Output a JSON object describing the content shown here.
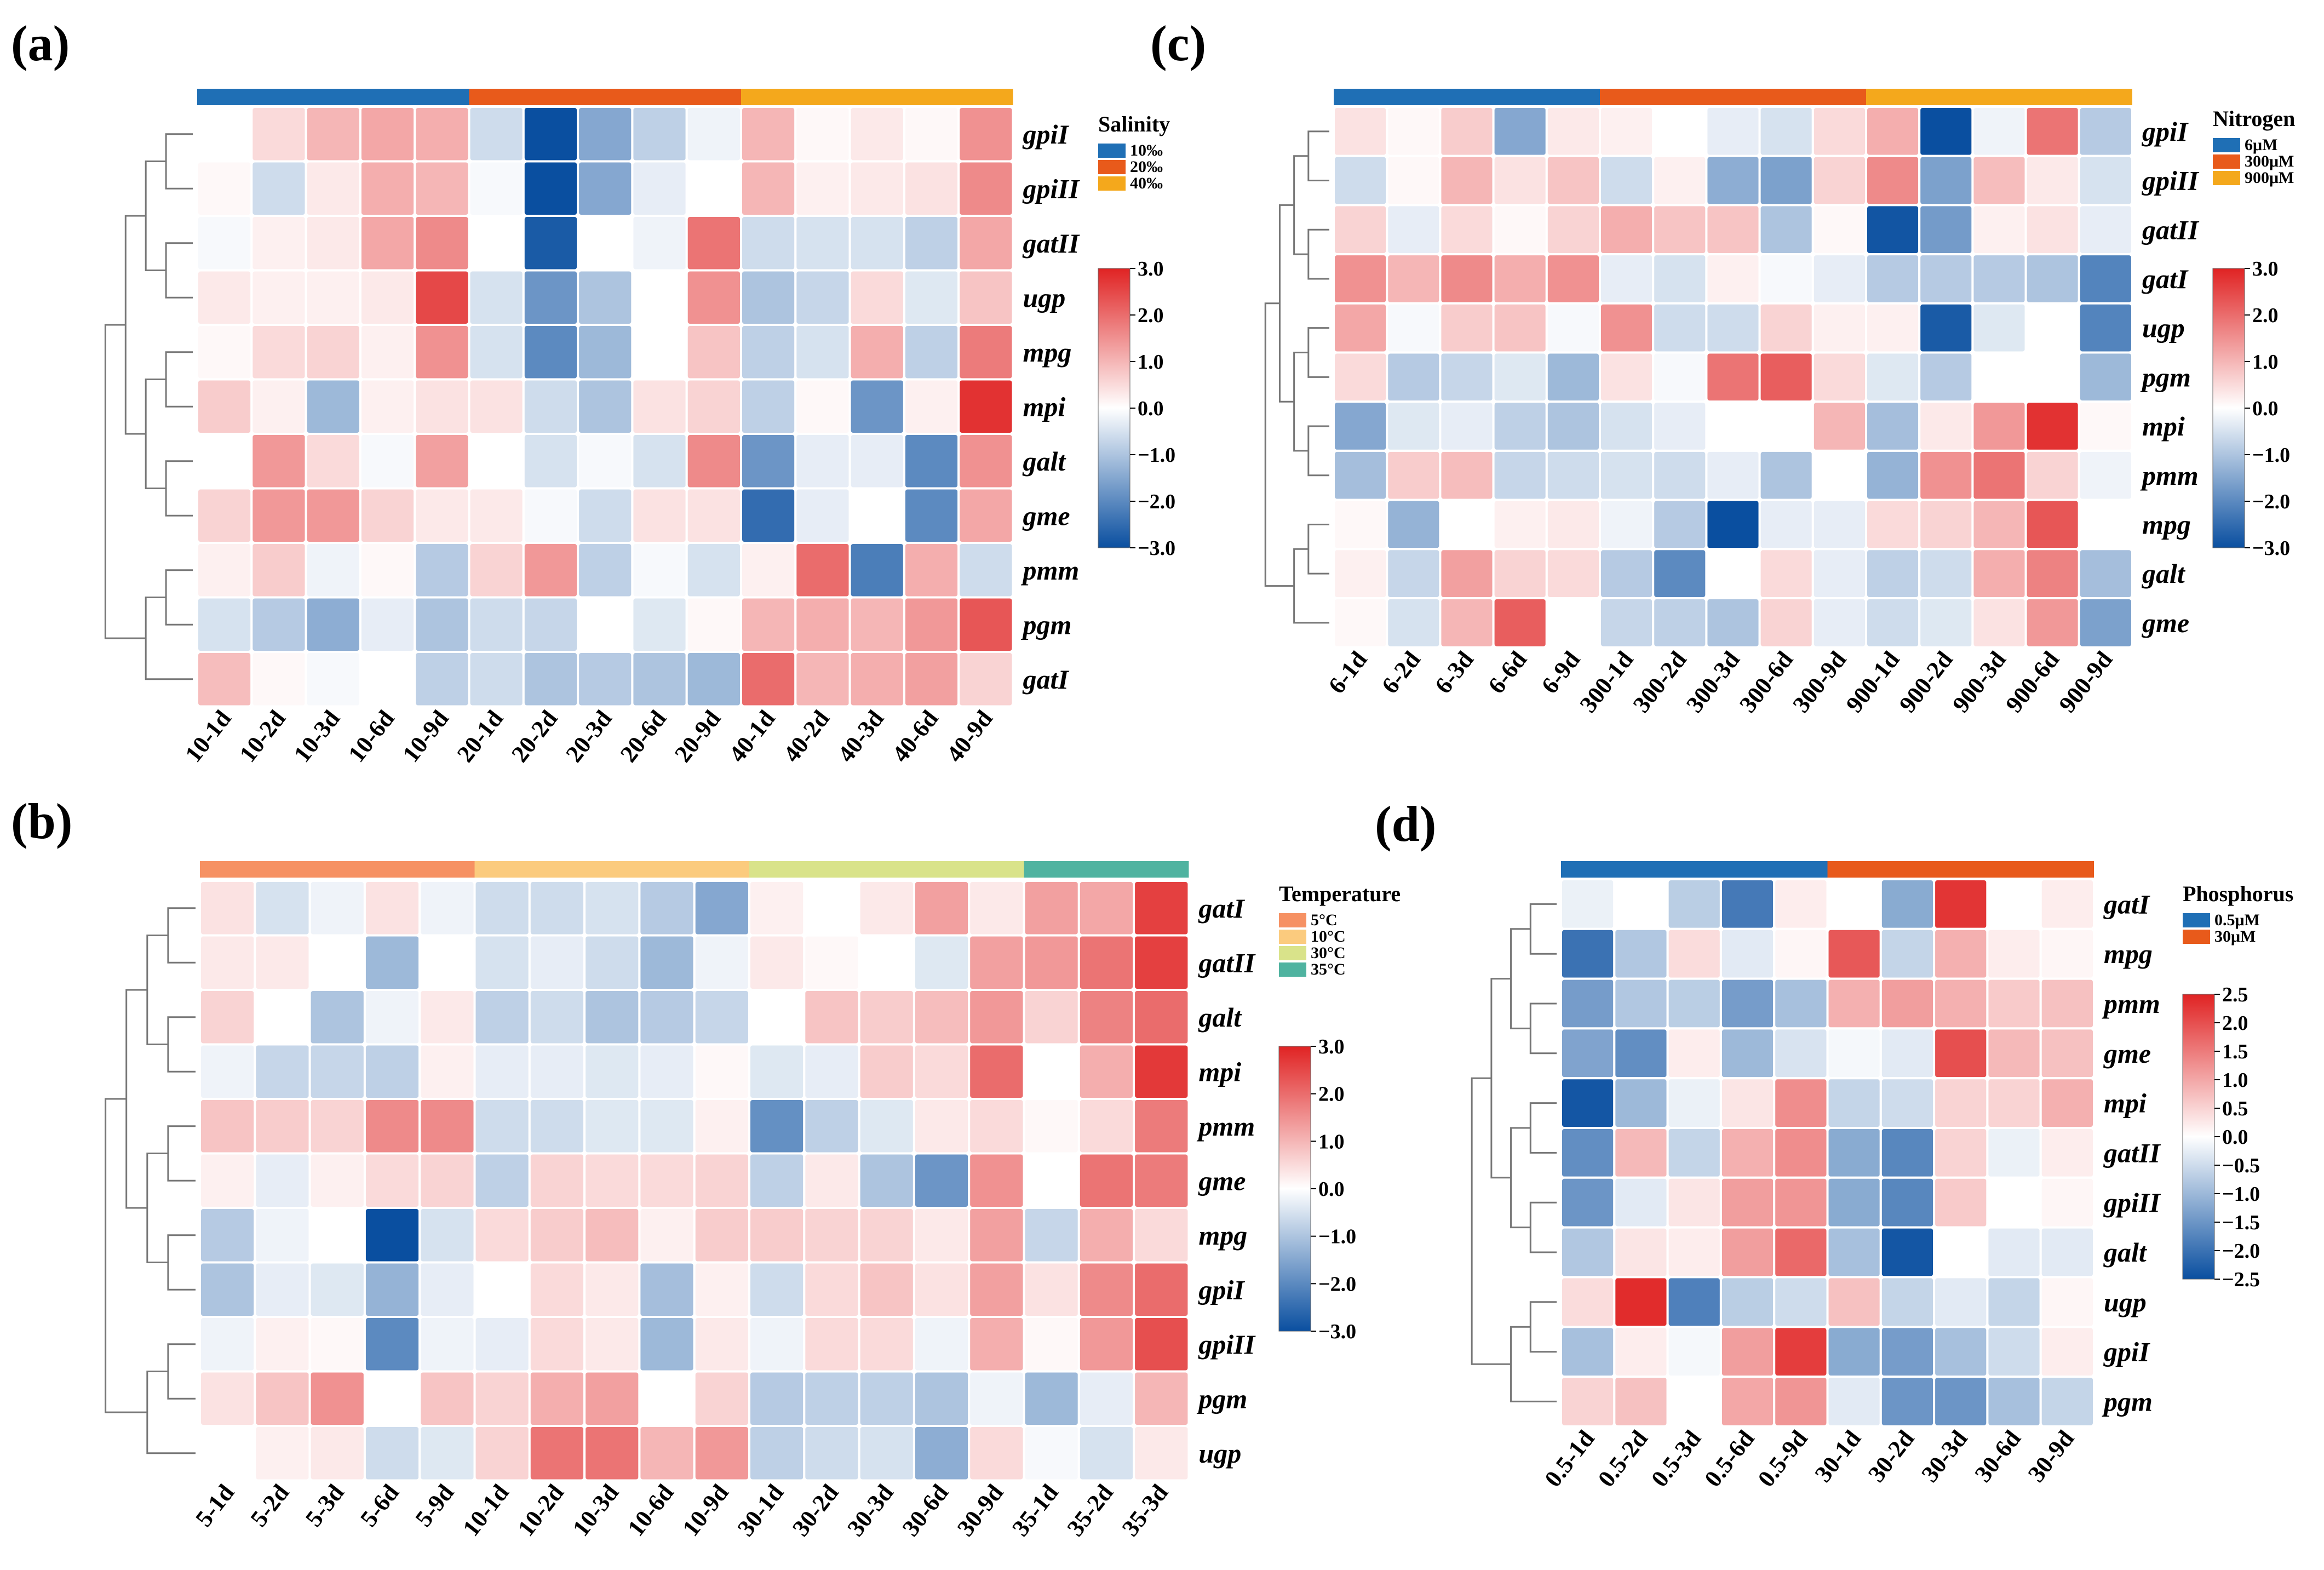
{
  "colors": {
    "low": "#0a4fa0",
    "mid": "#ffffff",
    "high": "#e02323",
    "grid": "#ffffff",
    "dendro": "#777777"
  },
  "chart_data": [
    {
      "type": "heatmap",
      "panel": "(a)",
      "legend_title": "Salinity",
      "groups": [
        {
          "label": "10‰",
          "color": "#1f6fb5"
        },
        {
          "label": "20‰",
          "color": "#e85a1b"
        },
        {
          "label": "40‰",
          "color": "#f4a81c"
        }
      ],
      "group_span": [
        5,
        5,
        5
      ],
      "columns": [
        "10-1d",
        "10-2d",
        "10-3d",
        "10-6d",
        "10-9d",
        "20-1d",
        "20-2d",
        "20-3d",
        "20-6d",
        "20-9d",
        "40-1d",
        "40-2d",
        "40-3d",
        "40-6d",
        "40-9d"
      ],
      "rows": [
        "gpiI",
        "gpiII",
        "gatII",
        "ugp",
        "mpg",
        "mpi",
        "galt",
        "gme",
        "pmm",
        "pgm",
        "gatI"
      ],
      "scale_range": [
        -3,
        3
      ],
      "scale_ticks": [
        "3.0",
        "2.0",
        "1.0",
        "0.0",
        "−1.0",
        "−2.0",
        "−3.0"
      ],
      "values": [
        [
          0.0,
          0.5,
          1.0,
          1.2,
          1.1,
          -0.6,
          -3.0,
          -1.5,
          -0.8,
          -0.2,
          1.0,
          0.1,
          0.3,
          0.1,
          1.5
        ],
        [
          0.1,
          -0.6,
          0.3,
          1.1,
          1.0,
          -0.1,
          -3.0,
          -1.5,
          -0.3,
          0.0,
          1.0,
          0.2,
          0.3,
          0.4,
          1.6
        ],
        [
          -0.1,
          0.2,
          0.3,
          1.2,
          1.6,
          0.0,
          -2.8,
          0.0,
          -0.2,
          1.9,
          -0.6,
          -0.5,
          -0.5,
          -0.8,
          1.2
        ],
        [
          0.3,
          0.2,
          0.2,
          0.3,
          2.5,
          -0.5,
          -1.8,
          -1.0,
          0.0,
          1.5,
          -1.0,
          -0.7,
          0.5,
          -0.4,
          0.8
        ],
        [
          0.1,
          0.5,
          0.6,
          0.2,
          1.5,
          -0.5,
          -2.0,
          -1.2,
          0.0,
          0.8,
          -0.8,
          -0.5,
          1.1,
          -0.8,
          1.8
        ],
        [
          0.7,
          0.2,
          -1.2,
          0.2,
          0.4,
          0.4,
          -0.6,
          -1.0,
          0.4,
          0.6,
          -0.8,
          0.1,
          -1.8,
          0.2,
          2.8
        ],
        [
          0.0,
          1.4,
          0.5,
          -0.1,
          1.3,
          0.0,
          -0.5,
          -0.1,
          -0.5,
          1.6,
          -1.8,
          -0.3,
          -0.3,
          -2.0,
          1.5
        ],
        [
          0.6,
          1.4,
          1.4,
          0.6,
          0.3,
          0.3,
          -0.1,
          -0.6,
          0.4,
          0.4,
          -2.5,
          -0.3,
          0.0,
          -2.0,
          1.2
        ],
        [
          0.2,
          0.7,
          -0.2,
          0.1,
          -0.9,
          0.6,
          1.4,
          -0.8,
          -0.1,
          -0.5,
          0.2,
          2.0,
          -2.2,
          1.1,
          -0.6
        ],
        [
          -0.5,
          -0.9,
          -1.4,
          -0.3,
          -1.0,
          -0.6,
          -0.7,
          0.0,
          -0.4,
          0.1,
          1.0,
          1.1,
          1.0,
          1.4,
          2.3
        ],
        [
          0.9,
          0.1,
          -0.1,
          0.0,
          -0.8,
          -0.6,
          -1.0,
          -0.9,
          -1.0,
          -1.2,
          2.0,
          1.0,
          1.1,
          1.3,
          0.6
        ]
      ]
    },
    {
      "type": "heatmap",
      "panel": "(b)",
      "legend_title": "Temperature",
      "groups": [
        {
          "label": "5°C",
          "color": "#f69163"
        },
        {
          "label": "10°C",
          "color": "#fbcb7e"
        },
        {
          "label": "30°C",
          "color": "#d9e38a"
        },
        {
          "label": "35°C",
          "color": "#4fb3a0"
        }
      ],
      "group_span": [
        5,
        5,
        5,
        3
      ],
      "columns": [
        "5-1d",
        "5-2d",
        "5-3d",
        "5-6d",
        "5-9d",
        "10-1d",
        "10-2d",
        "10-3d",
        "10-6d",
        "10-9d",
        "30-1d",
        "30-2d",
        "30-3d",
        "30-6d",
        "30-9d",
        "35-1d",
        "35-2d",
        "35-3d"
      ],
      "rows": [
        "gatI",
        "gatII",
        "galt",
        "mpi",
        "pmm",
        "gme",
        "mpg",
        "gpiI",
        "gpiII",
        "pgm",
        "ugp"
      ],
      "scale_range": [
        -3,
        3
      ],
      "scale_ticks": [
        "3.0",
        "2.0",
        "1.0",
        "0.0",
        "−1.0",
        "−2.0",
        "−3.0"
      ],
      "values": [
        [
          0.4,
          -0.5,
          -0.2,
          0.4,
          -0.2,
          -0.6,
          -0.6,
          -0.5,
          -0.9,
          -1.5,
          0.2,
          0.0,
          0.3,
          1.3,
          0.3,
          1.3,
          1.2,
          2.6
        ],
        [
          0.3,
          0.3,
          0.0,
          -1.2,
          0.0,
          -0.5,
          -0.3,
          -0.6,
          -1.2,
          -0.2,
          0.3,
          0.1,
          0.0,
          -0.4,
          1.3,
          1.4,
          1.9,
          2.6
        ],
        [
          0.6,
          0.0,
          -1.0,
          -0.2,
          0.3,
          -0.8,
          -0.6,
          -1.0,
          -0.9,
          -0.7,
          0.0,
          0.8,
          0.7,
          0.9,
          1.4,
          0.6,
          1.7,
          2.0
        ],
        [
          -0.2,
          -0.7,
          -0.7,
          -0.8,
          0.2,
          -0.3,
          -0.3,
          -0.4,
          -0.3,
          0.1,
          -0.4,
          -0.3,
          0.7,
          0.5,
          2.0,
          0.0,
          1.1,
          2.7
        ],
        [
          0.8,
          0.7,
          0.6,
          1.6,
          1.6,
          -0.6,
          -0.6,
          -0.4,
          -0.4,
          0.2,
          -1.9,
          -0.8,
          -0.4,
          0.3,
          0.5,
          0.1,
          0.5,
          1.8
        ],
        [
          0.2,
          -0.3,
          0.2,
          0.5,
          0.6,
          -0.8,
          0.6,
          0.5,
          0.5,
          0.6,
          -0.8,
          0.3,
          -1.0,
          -1.8,
          1.5,
          0.0,
          1.9,
          1.8
        ],
        [
          -0.9,
          -0.2,
          0.0,
          -3.0,
          -0.5,
          0.5,
          0.7,
          0.9,
          0.2,
          0.7,
          0.7,
          0.6,
          0.6,
          0.3,
          1.3,
          -0.7,
          1.1,
          0.5
        ],
        [
          -1.0,
          -0.3,
          -0.4,
          -1.3,
          -0.3,
          0.0,
          0.5,
          0.3,
          -1.1,
          0.2,
          -0.6,
          0.5,
          0.8,
          0.4,
          1.3,
          0.4,
          1.6,
          2.0
        ],
        [
          -0.2,
          0.2,
          0.1,
          -2.0,
          -0.2,
          -0.3,
          0.5,
          0.3,
          -1.2,
          0.3,
          -0.2,
          0.5,
          0.5,
          -0.2,
          1.1,
          0.1,
          1.4,
          2.4
        ],
        [
          0.4,
          0.8,
          1.5,
          0.0,
          0.8,
          0.6,
          1.1,
          1.3,
          0.0,
          0.6,
          -0.9,
          -0.8,
          -0.8,
          -1.0,
          -0.2,
          -1.2,
          -0.3,
          1.0
        ],
        [
          0.0,
          0.2,
          0.3,
          -0.6,
          -0.4,
          0.6,
          1.9,
          1.9,
          1.0,
          1.4,
          -0.8,
          -0.6,
          -0.5,
          -1.4,
          0.5,
          -0.1,
          -0.5,
          0.3
        ]
      ]
    },
    {
      "type": "heatmap",
      "panel": "(c)",
      "legend_title": "Nitrogen",
      "groups": [
        {
          "label": "6μM",
          "color": "#1f6fb5"
        },
        {
          "label": "300μM",
          "color": "#e85a1b"
        },
        {
          "label": "900μM",
          "color": "#f4a81c"
        }
      ],
      "group_span": [
        5,
        5,
        5
      ],
      "columns": [
        "6-1d",
        "6-2d",
        "6-3d",
        "6-6d",
        "6-9d",
        "300-1d",
        "300-2d",
        "300-3d",
        "300-6d",
        "300-9d",
        "900-1d",
        "900-2d",
        "900-3d",
        "900-6d",
        "900-9d"
      ],
      "rows": [
        "gpiI",
        "gpiII",
        "gatII",
        "gatI",
        "ugp",
        "pgm",
        "mpi",
        "pmm",
        "mpg",
        "galt",
        "gme"
      ],
      "scale_range": [
        -3,
        3
      ],
      "scale_ticks": [
        "3.0",
        "2.0",
        "1.0",
        "0.0",
        "−1.0",
        "−2.0",
        "−3.0"
      ],
      "values": [
        [
          0.4,
          0.1,
          0.7,
          -1.5,
          0.3,
          0.2,
          0.0,
          -0.3,
          -0.5,
          0.5,
          1.1,
          -3.0,
          -0.2,
          1.9,
          -0.9
        ],
        [
          -0.6,
          0.1,
          1.0,
          0.4,
          0.8,
          -0.6,
          0.2,
          -1.4,
          -1.6,
          0.6,
          1.6,
          -1.6,
          0.9,
          0.3,
          -0.5
        ],
        [
          0.6,
          -0.3,
          0.5,
          0.1,
          0.6,
          1.1,
          0.8,
          0.8,
          -1.0,
          0.1,
          -2.9,
          -1.7,
          0.2,
          0.4,
          -0.3
        ],
        [
          1.5,
          1.0,
          1.6,
          1.1,
          1.5,
          -0.3,
          -0.5,
          0.2,
          -0.1,
          -0.3,
          -0.9,
          -0.9,
          -0.9,
          -1.0,
          -2.1
        ],
        [
          1.2,
          -0.1,
          0.7,
          0.8,
          -0.1,
          1.5,
          -0.6,
          -0.6,
          0.6,
          0.2,
          0.2,
          -2.8,
          -0.4,
          0.0,
          -2.1
        ],
        [
          0.5,
          -0.9,
          -0.7,
          -0.4,
          -1.2,
          0.4,
          -0.1,
          1.9,
          2.2,
          0.5,
          -0.4,
          -0.9,
          0.0,
          0.0,
          -1.2
        ],
        [
          -1.5,
          -0.4,
          -0.3,
          -0.8,
          -1.0,
          -0.5,
          -0.3,
          0.0,
          0.0,
          1.0,
          -1.1,
          0.3,
          1.4,
          2.8,
          0.1
        ],
        [
          -1.1,
          0.7,
          0.9,
          -0.7,
          -0.6,
          -0.5,
          -0.6,
          -0.3,
          -1.0,
          0.0,
          -1.3,
          1.5,
          1.9,
          0.6,
          -0.2
        ],
        [
          0.1,
          -1.3,
          0.0,
          0.2,
          0.3,
          -0.2,
          -0.9,
          -3.0,
          -0.3,
          -0.3,
          0.5,
          0.6,
          1.0,
          2.3,
          0.0
        ],
        [
          0.2,
          -0.7,
          1.3,
          0.6,
          0.5,
          -0.9,
          -2.0,
          0.0,
          0.5,
          -0.3,
          -0.8,
          -0.6,
          1.1,
          1.7,
          -1.1
        ],
        [
          0.1,
          -0.5,
          1.0,
          2.2,
          0.0,
          -0.7,
          -0.8,
          -1.0,
          0.6,
          -0.3,
          -0.6,
          -0.4,
          0.4,
          1.4,
          -1.6
        ]
      ]
    },
    {
      "type": "heatmap",
      "panel": "(d)",
      "legend_title": "Phosphorus",
      "groups": [
        {
          "label": "0.5μM",
          "color": "#1f6fb5"
        },
        {
          "label": "30μM",
          "color": "#e85a1b"
        }
      ],
      "group_span": [
        5,
        5
      ],
      "columns": [
        "0.5-1d",
        "0.5-2d",
        "0.5-3d",
        "0.5-6d",
        "0.5-9d",
        "30-1d",
        "30-2d",
        "30-3d",
        "30-6d",
        "30-9d"
      ],
      "rows": [
        "gatI",
        "mpg",
        "pmm",
        "gme",
        "mpi",
        "gatII",
        "gpiII",
        "galt",
        "ugp",
        "gpiI",
        "pgm"
      ],
      "scale_range": [
        -2.5,
        2.5
      ],
      "scale_ticks": [
        "2.5",
        "2.0",
        "1.5",
        "1.0",
        "0.5",
        "0.0",
        "−0.5",
        "−1.0",
        "−1.5",
        "−2.0",
        "−2.5"
      ],
      "values": [
        [
          -0.2,
          0.0,
          -0.7,
          -1.9,
          0.2,
          0.0,
          -1.2,
          2.3,
          0.0,
          0.2
        ],
        [
          -2.0,
          -0.8,
          0.4,
          -0.3,
          0.1,
          1.9,
          -0.6,
          0.9,
          0.2,
          0.1
        ],
        [
          -1.4,
          -0.8,
          -0.7,
          -1.4,
          -0.9,
          0.9,
          1.1,
          0.9,
          0.6,
          0.7
        ],
        [
          -1.3,
          -1.6,
          0.2,
          -1.0,
          -0.4,
          -0.1,
          -0.3,
          2.0,
          0.8,
          0.7
        ],
        [
          -2.4,
          -1.0,
          -0.2,
          0.3,
          1.3,
          -0.6,
          -0.5,
          0.5,
          0.5,
          0.9
        ],
        [
          -1.6,
          0.8,
          -0.6,
          0.9,
          1.3,
          -1.2,
          -1.7,
          0.5,
          -0.2,
          0.2
        ],
        [
          -1.5,
          -0.3,
          0.3,
          1.1,
          1.2,
          -1.2,
          -1.7,
          0.6,
          0.0,
          0.1
        ],
        [
          -0.8,
          0.3,
          0.2,
          1.1,
          1.7,
          -0.9,
          -2.4,
          0.0,
          -0.3,
          -0.3
        ],
        [
          0.4,
          2.4,
          -1.8,
          -0.7,
          -0.5,
          0.7,
          -0.6,
          -0.3,
          -0.6,
          0.1
        ],
        [
          -0.9,
          0.2,
          -0.1,
          1.1,
          2.2,
          -1.2,
          -1.4,
          -0.9,
          -0.5,
          0.2
        ],
        [
          0.5,
          0.7,
          0.0,
          1.0,
          1.2,
          -0.3,
          -1.5,
          -1.5,
          -0.9,
          -0.6
        ]
      ]
    }
  ]
}
